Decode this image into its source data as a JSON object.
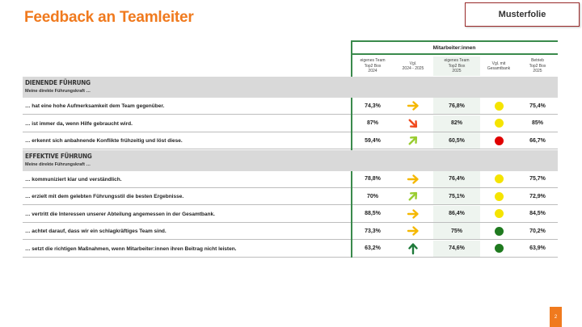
{
  "title": "Feedback an Teamleiter",
  "badge": "Musterfolie",
  "group_header": "Mitarbeiter:innen",
  "columns": [
    "eigenes Team\nTop2 Box\n2024",
    "Vgl.\n2024 - 2025",
    "eigenes Team\nTop2 Box\n2025",
    "Vgl. mit\nGesamtbank",
    "Betrieb\nTop2 Box\n2025"
  ],
  "sections": [
    {
      "title": "Dienende Führung",
      "subtitle": "Meine direkte Führungskraft …",
      "rows": [
        {
          "label": "… hat eine hohe Aufmerksamkeit dem Team gegenüber.",
          "v2024": "74,3%",
          "trend": "right",
          "v2025": "76,8%",
          "status": "yellow",
          "betrieb": "75,4%"
        },
        {
          "label": "… ist immer da, wenn Hilfe gebraucht wird.",
          "v2024": "87%",
          "trend": "down",
          "v2025": "82%",
          "status": "yellow",
          "betrieb": "85%"
        },
        {
          "label": "… erkennt sich anbahnende Konflikte frühzeitig und löst diese.",
          "v2024": "59,4%",
          "trend": "up-right",
          "v2025": "60,5%",
          "status": "red",
          "betrieb": "66,7%"
        }
      ]
    },
    {
      "title": "Effektive Führung",
      "subtitle": "Meine direkte Führungskraft …",
      "rows": [
        {
          "label": "… kommuniziert klar und verständlich.",
          "v2024": "78,8%",
          "trend": "right",
          "v2025": "76,4%",
          "status": "yellow",
          "betrieb": "75,7%"
        },
        {
          "label": "… erzielt mit dem gelebten Führungsstil die besten Ergebnisse.",
          "v2024": "70%",
          "trend": "up-right",
          "v2025": "75,1%",
          "status": "yellow",
          "betrieb": "72,9%"
        },
        {
          "label": "… vertritt die Interessen unserer Abteilung angemessen in der Gesamtbank.",
          "v2024": "88,5%",
          "trend": "right",
          "v2025": "86,4%",
          "status": "yellow",
          "betrieb": "84,5%"
        },
        {
          "label": "… achtet darauf, dass wir ein schlagkräftiges Team sind.",
          "v2024": "73,3%",
          "trend": "right",
          "v2025": "75%",
          "status": "green",
          "betrieb": "70,2%"
        },
        {
          "label": "… setzt die richtigen Maßnahmen, wenn Mitarbeiter:innen ihren Beitrag nicht leisten.",
          "v2024": "63,2%",
          "trend": "up",
          "v2025": "74,6%",
          "status": "green",
          "betrieb": "63,9%"
        }
      ]
    }
  ],
  "page_number": "2",
  "colors": {
    "accent": "#f07a1e",
    "green_line": "#3a8a4c",
    "status_yellow": "#f5e400",
    "status_red": "#e00000",
    "status_green": "#1f7a1f",
    "arrow_right": "#f5b800",
    "arrow_down": "#f04a1e",
    "arrow_up_right": "#9acd32",
    "arrow_up": "#1e7a3a"
  }
}
